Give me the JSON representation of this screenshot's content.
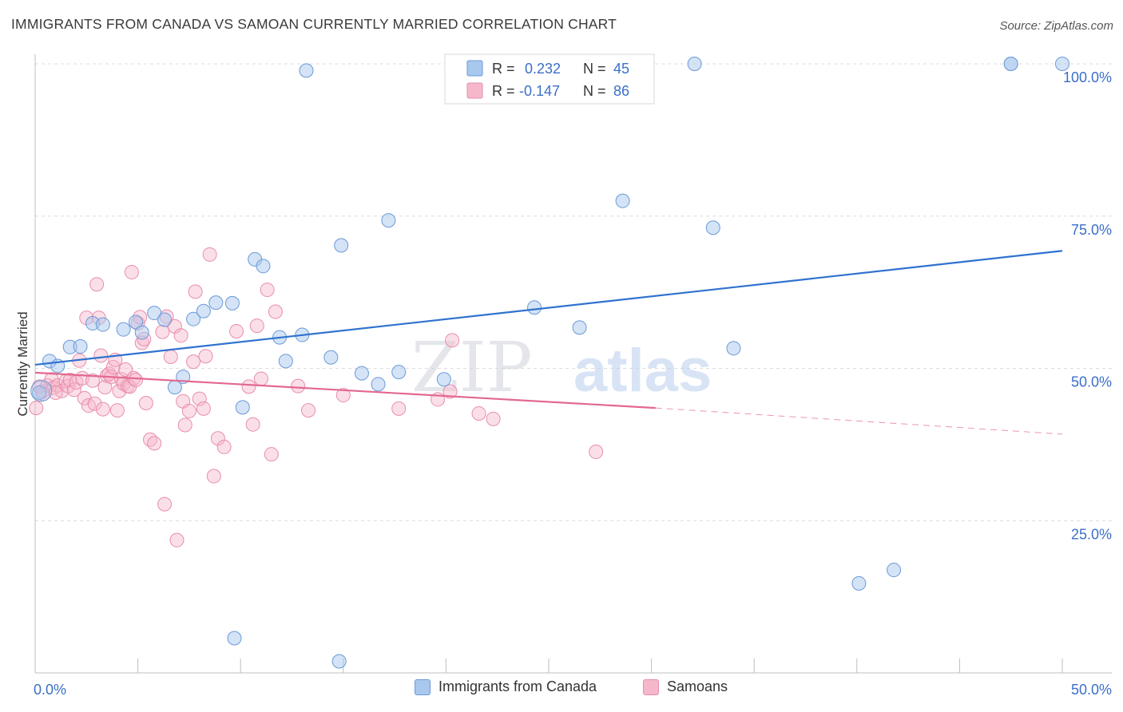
{
  "header": {
    "title": "IMMIGRANTS FROM CANADA VS SAMOAN CURRENTLY MARRIED CORRELATION CHART",
    "source": "Source: ZipAtlas.com"
  },
  "watermark": {
    "zip": "ZIP",
    "atlas": "atlas"
  },
  "colors": {
    "blue_fill": "#a9c8ee",
    "blue_stroke": "#6a9ad8",
    "blue_line": "#2f72cf",
    "pink_fill": "#f6b7cb",
    "pink_stroke": "#e88eab",
    "pink_line": "#e3688f",
    "axis_label": "#3b6fc9",
    "grid": "#dcdcdc"
  },
  "chart_data": {
    "type": "scatter",
    "title": "IMMIGRANTS FROM CANADA VS SAMOAN CURRENTLY MARRIED CORRELATION CHART",
    "xlabel": "",
    "ylabel": "Currently Married",
    "xlim": [
      0,
      50
    ],
    "ylim": [
      0,
      101
    ],
    "x_tick_labels": [
      "0.0%",
      "50.0%"
    ],
    "y_ticks": [
      25,
      50,
      75,
      100
    ],
    "y_tick_labels": [
      "25.0%",
      "50.0%",
      "75.0%",
      "100.0%"
    ],
    "grid": true,
    "legend_position": "top-center",
    "stats": [
      {
        "r_label": "R =",
        "r_value": "0.232",
        "n_label": "N =",
        "n_value": "45"
      },
      {
        "r_label": "R =",
        "r_value": "-0.147",
        "n_label": "N =",
        "n_value": "86"
      }
    ],
    "series": [
      {
        "name": "Immigrants from Canada",
        "color": "#a9c8ee",
        "trend": {
          "x": [
            0,
            50
          ],
          "y": [
            50.6,
            69.3
          ]
        },
        "points": [
          [
            0.2,
            46.0
          ],
          [
            0.7,
            51.2
          ],
          [
            1.1,
            50.4
          ],
          [
            1.7,
            53.5
          ],
          [
            2.2,
            53.6
          ],
          [
            2.8,
            57.4
          ],
          [
            3.3,
            57.2
          ],
          [
            4.3,
            56.4
          ],
          [
            4.9,
            57.6
          ],
          [
            5.2,
            55.9
          ],
          [
            5.8,
            59.1
          ],
          [
            6.3,
            58.0
          ],
          [
            6.8,
            46.9
          ],
          [
            7.2,
            48.6
          ],
          [
            7.7,
            58.1
          ],
          [
            8.2,
            59.4
          ],
          [
            8.8,
            60.8
          ],
          [
            9.6,
            60.7
          ],
          [
            9.7,
            5.7
          ],
          [
            10.1,
            43.6
          ],
          [
            10.7,
            67.9
          ],
          [
            11.1,
            66.8
          ],
          [
            11.9,
            55.1
          ],
          [
            12.2,
            51.2
          ],
          [
            13.0,
            55.5
          ],
          [
            13.2,
            98.9
          ],
          [
            14.4,
            51.8
          ],
          [
            14.8,
            1.9
          ],
          [
            14.9,
            70.2
          ],
          [
            15.9,
            49.2
          ],
          [
            16.7,
            47.4
          ],
          [
            17.2,
            74.3
          ],
          [
            17.7,
            49.4
          ],
          [
            19.9,
            48.2
          ],
          [
            24.3,
            60.0
          ],
          [
            26.5,
            56.7
          ],
          [
            28.6,
            77.5
          ],
          [
            32.1,
            100.0
          ],
          [
            33.0,
            73.1
          ],
          [
            34.0,
            53.3
          ],
          [
            40.1,
            14.7
          ],
          [
            41.8,
            16.9
          ],
          [
            47.5,
            100.0
          ],
          [
            47.5,
            100.0
          ],
          [
            50.0,
            100.0
          ]
        ]
      },
      {
        "name": "Samoans",
        "color": "#f6b7cb",
        "trend": {
          "x": [
            0,
            30.2
          ],
          "y": [
            49.3,
            43.5
          ]
        },
        "trend_extension": {
          "x": [
            30.2,
            50
          ],
          "y": [
            43.5,
            39.2
          ]
        },
        "points": [
          [
            0.05,
            43.5
          ],
          [
            0.2,
            47.0
          ],
          [
            0.35,
            46.2
          ],
          [
            0.6,
            47.2
          ],
          [
            0.8,
            48.2
          ],
          [
            0.9,
            46.8
          ],
          [
            1.1,
            47.2
          ],
          [
            1.3,
            46.3
          ],
          [
            1.5,
            47.9
          ],
          [
            1.6,
            47.1
          ],
          [
            1.7,
            48.1
          ],
          [
            1.9,
            46.5
          ],
          [
            2.0,
            47.7
          ],
          [
            2.15,
            51.3
          ],
          [
            2.3,
            48.4
          ],
          [
            2.4,
            45.1
          ],
          [
            2.5,
            58.3
          ],
          [
            2.6,
            43.9
          ],
          [
            2.8,
            48.0
          ],
          [
            2.9,
            44.2
          ],
          [
            3.0,
            63.8
          ],
          [
            3.1,
            58.3
          ],
          [
            3.2,
            52.1
          ],
          [
            3.3,
            43.3
          ],
          [
            3.4,
            46.9
          ],
          [
            3.5,
            48.8
          ],
          [
            3.6,
            49.1
          ],
          [
            3.7,
            48.6
          ],
          [
            3.8,
            50.2
          ],
          [
            3.9,
            51.4
          ],
          [
            4.0,
            43.1
          ],
          [
            4.1,
            46.3
          ],
          [
            4.2,
            48.2
          ],
          [
            4.3,
            47.5
          ],
          [
            4.4,
            49.8
          ],
          [
            4.5,
            47.1
          ],
          [
            4.6,
            47.0
          ],
          [
            4.7,
            65.8
          ],
          [
            4.8,
            48.4
          ],
          [
            4.9,
            48.1
          ],
          [
            5.0,
            57.4
          ],
          [
            5.1,
            58.4
          ],
          [
            5.2,
            54.2
          ],
          [
            5.3,
            54.8
          ],
          [
            5.4,
            44.3
          ],
          [
            5.6,
            38.3
          ],
          [
            5.8,
            37.7
          ],
          [
            6.2,
            56.0
          ],
          [
            6.3,
            27.7
          ],
          [
            6.4,
            58.5
          ],
          [
            6.6,
            51.9
          ],
          [
            6.8,
            56.9
          ],
          [
            6.9,
            21.8
          ],
          [
            7.1,
            55.4
          ],
          [
            7.2,
            44.6
          ],
          [
            7.3,
            40.7
          ],
          [
            7.5,
            43.0
          ],
          [
            7.7,
            51.1
          ],
          [
            7.8,
            62.6
          ],
          [
            8.0,
            45.0
          ],
          [
            8.2,
            43.4
          ],
          [
            8.3,
            52.0
          ],
          [
            8.5,
            68.7
          ],
          [
            8.7,
            32.3
          ],
          [
            8.9,
            38.5
          ],
          [
            9.2,
            37.1
          ],
          [
            9.8,
            56.1
          ],
          [
            10.4,
            47.0
          ],
          [
            10.6,
            40.8
          ],
          [
            10.8,
            57.0
          ],
          [
            11.0,
            48.3
          ],
          [
            11.3,
            62.9
          ],
          [
            11.5,
            35.9
          ],
          [
            11.7,
            59.3
          ],
          [
            12.8,
            47.1
          ],
          [
            13.3,
            43.1
          ],
          [
            15.0,
            45.6
          ],
          [
            17.7,
            43.4
          ],
          [
            19.6,
            44.9
          ],
          [
            20.2,
            46.2
          ],
          [
            20.3,
            54.6
          ],
          [
            21.6,
            42.6
          ],
          [
            22.3,
            41.7
          ],
          [
            27.3,
            36.3
          ],
          [
            0.4,
            45.8
          ],
          [
            1.0,
            46.0
          ]
        ]
      }
    ]
  }
}
